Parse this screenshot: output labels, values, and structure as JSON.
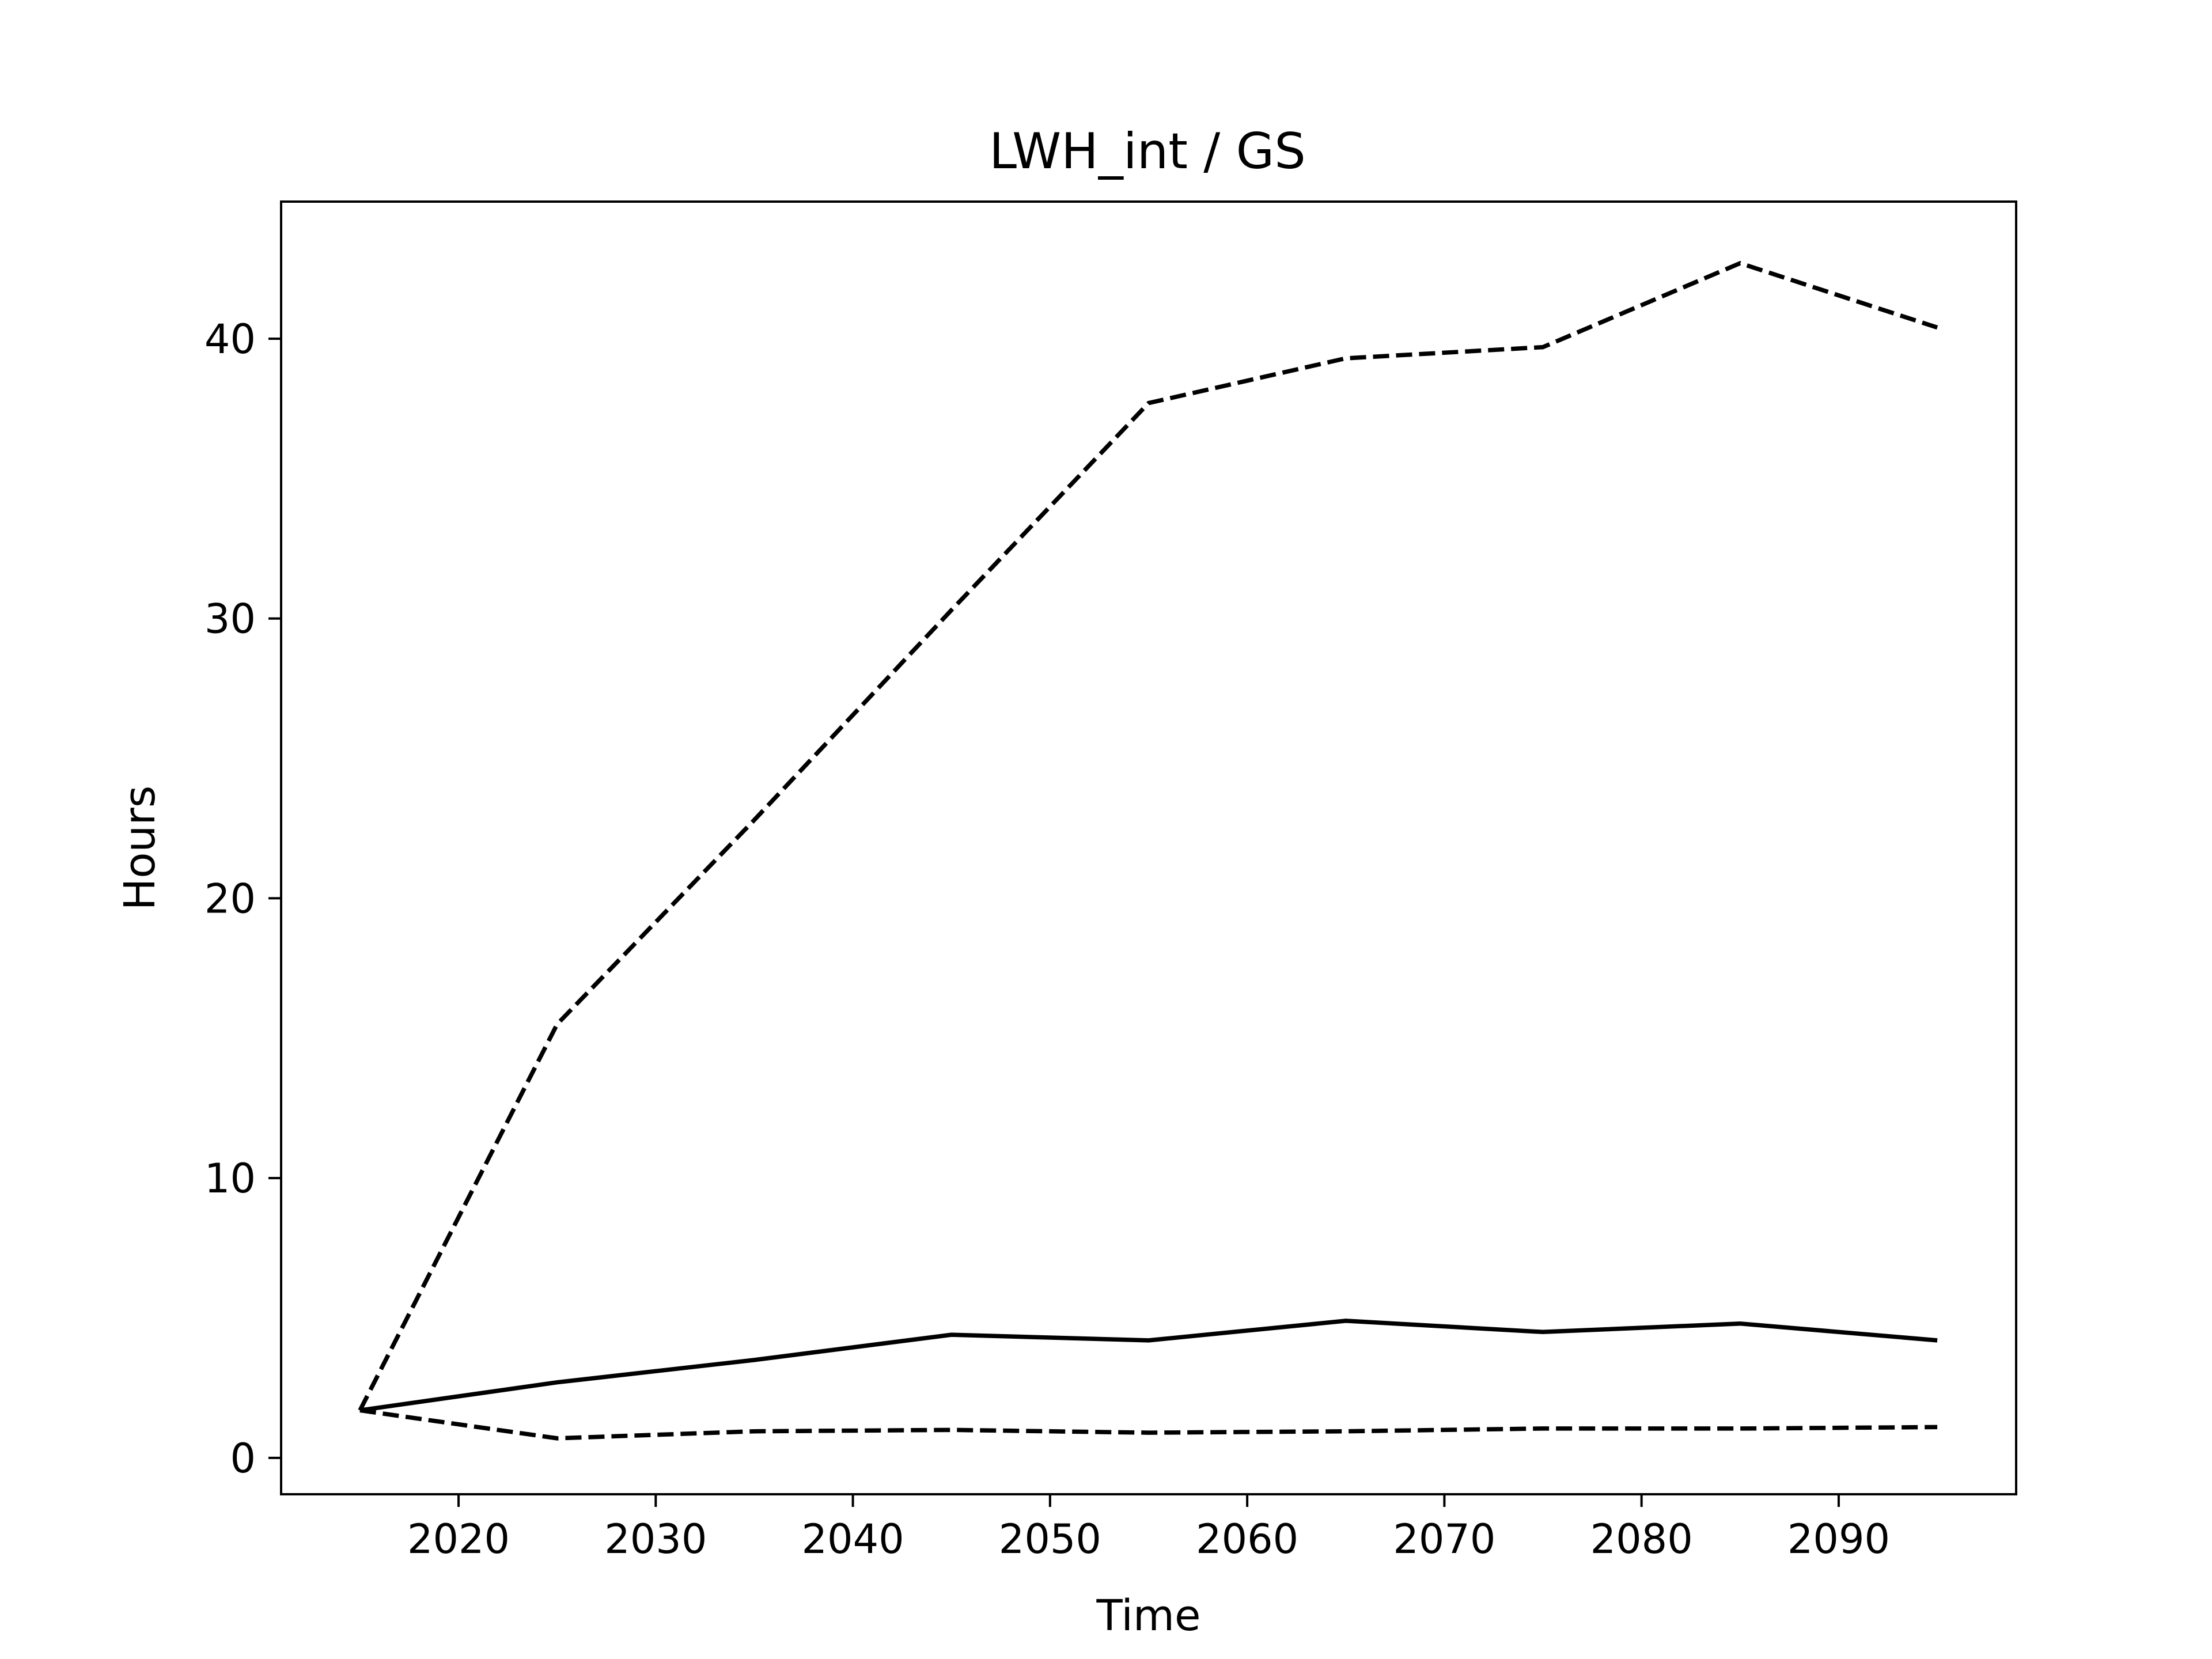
{
  "chart_data": {
    "type": "line",
    "title": "LWH_int / GS",
    "xlabel": "Time",
    "ylabel": "Hours",
    "xlim": [
      2011,
      2099
    ],
    "ylim": [
      -1.3,
      44.9
    ],
    "xticks": [
      2020,
      2030,
      2040,
      2050,
      2060,
      2070,
      2080,
      2090
    ],
    "yticks": [
      0,
      10,
      20,
      30,
      40
    ],
    "grid": false,
    "legend": "none",
    "x": [
      2015,
      2025,
      2035,
      2045,
      2055,
      2065,
      2075,
      2085,
      2095
    ],
    "series": [
      {
        "style": "solid",
        "color": "#000000",
        "values": [
          1.7,
          2.7,
          3.5,
          4.4,
          4.2,
          4.9,
          4.5,
          4.8,
          4.2
        ]
      },
      {
        "style": "dashed",
        "color": "#000000",
        "values": [
          1.7,
          15.5,
          22.8,
          30.3,
          37.7,
          39.3,
          39.7,
          42.7,
          40.4
        ]
      },
      {
        "style": "dashed",
        "color": "#000000",
        "values": [
          1.7,
          0.7,
          0.95,
          1.0,
          0.9,
          0.95,
          1.05,
          1.05,
          1.1
        ]
      }
    ]
  }
}
